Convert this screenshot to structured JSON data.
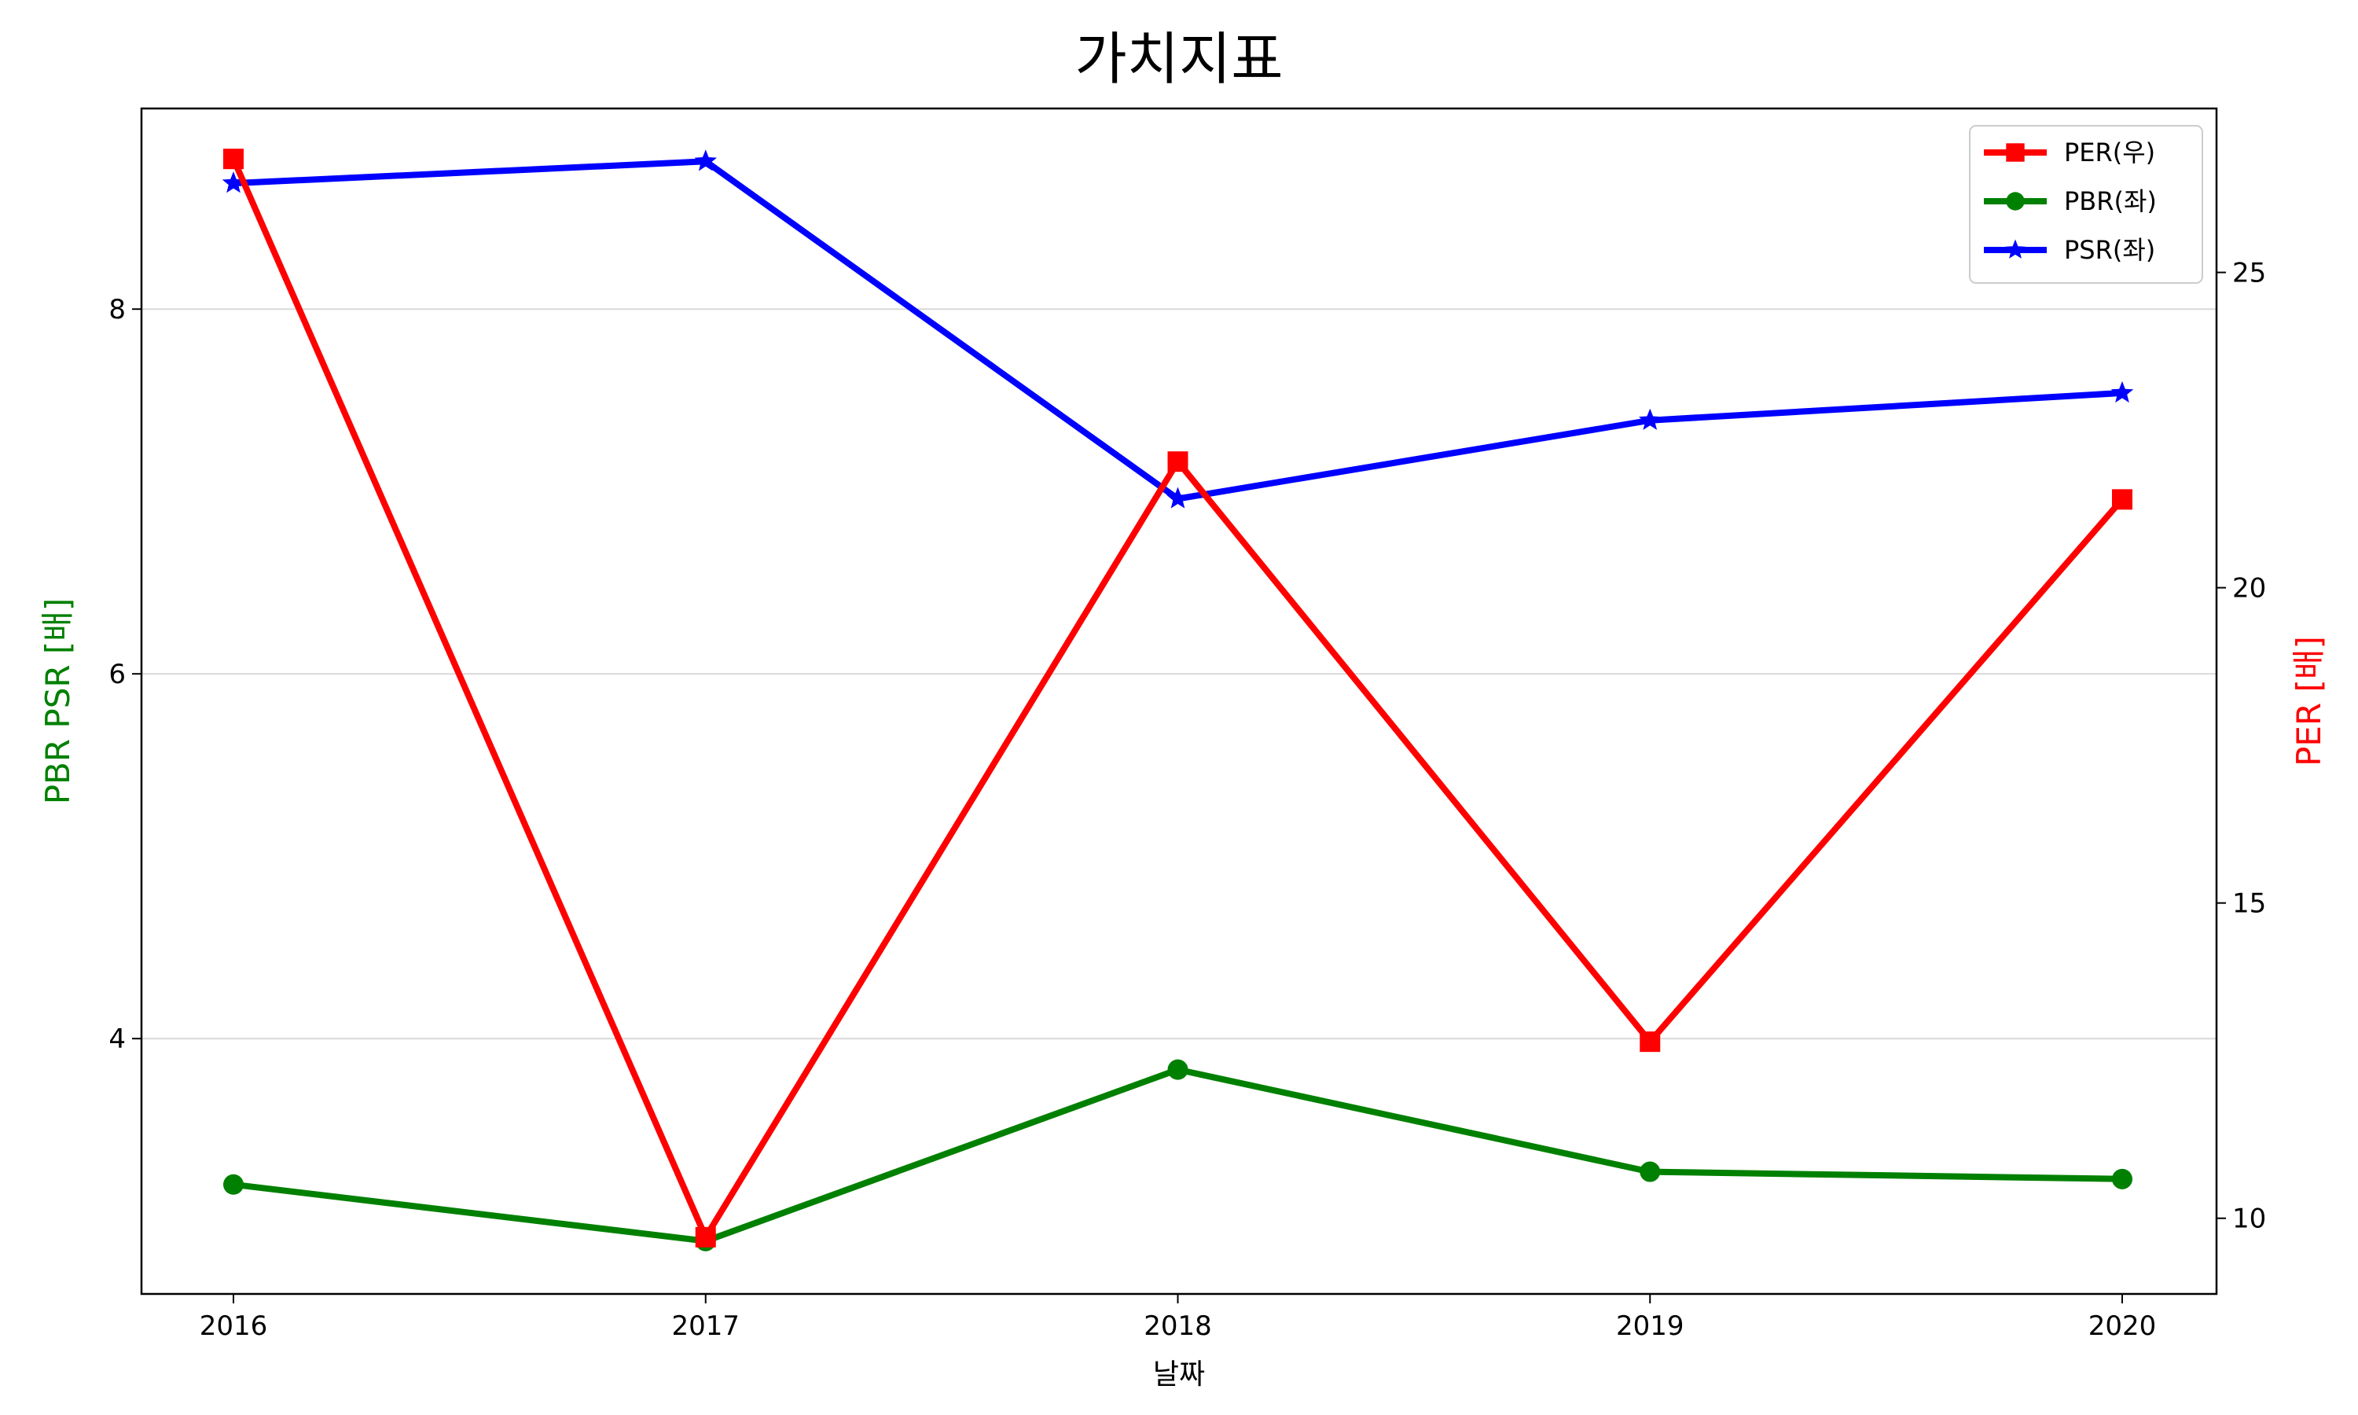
{
  "chart_data": {
    "type": "line",
    "title": "가치지표",
    "xlabel": "날짜",
    "ylabel_left": "PBR PSR [배]",
    "ylabel_right": "PER [배]",
    "x": [
      "2016",
      "2017",
      "2018",
      "2019",
      "2020"
    ],
    "ylim_left": [
      2.6,
      9.1
    ],
    "ylim_right": [
      8.8,
      27.6
    ],
    "yticks_left": [
      4,
      6,
      8
    ],
    "yticks_right": [
      10,
      15,
      20,
      25
    ],
    "grid": "horizontal (left axis)",
    "legend_position": "top-right",
    "series": [
      {
        "name": "PER(우)",
        "axis": "right",
        "color": "#ff0000",
        "marker": "square",
        "values": [
          26.8,
          9.7,
          22.0,
          12.8,
          21.4
        ]
      },
      {
        "name": "PBR(좌)",
        "axis": "left",
        "color": "#008000",
        "marker": "circle",
        "values": [
          3.2,
          2.89,
          3.83,
          3.27,
          3.23
        ]
      },
      {
        "name": "PSR(좌)",
        "axis": "left",
        "color": "#0000ff",
        "marker": "star",
        "values": [
          8.69,
          8.81,
          6.96,
          7.39,
          7.54
        ]
      }
    ],
    "label_colors": {
      "left": "#008000",
      "right": "#ff0000"
    }
  }
}
